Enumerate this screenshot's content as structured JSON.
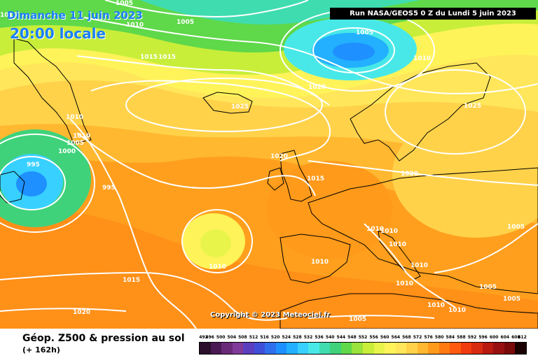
{
  "header": {
    "date": "Dimanche 11 juin 2023",
    "time": "20:00 locale",
    "run": "Run NASA/GEOS5 0 Z du Lundi 5 juin 2023"
  },
  "copyright": "Copyright © 2023 Meteociel.fr",
  "footer": {
    "title": "Géop. Z500 & pression au sol",
    "subtitle": "(+ 162h)"
  },
  "legend": {
    "ticks": [
      "492",
      "496",
      "500",
      "504",
      "508",
      "512",
      "516",
      "520",
      "524",
      "528",
      "532",
      "536",
      "540",
      "544",
      "548",
      "552",
      "556",
      "560",
      "564",
      "568",
      "572",
      "576",
      "580",
      "584",
      "588",
      "592",
      "596",
      "600",
      "604",
      "608",
      "612"
    ],
    "colors": [
      "#2b0f2b",
      "#4a1a55",
      "#6a2a7a",
      "#7f3a9a",
      "#5b3fbf",
      "#3f4fd8",
      "#2f6fee",
      "#1e90ff",
      "#22b0ff",
      "#38d0ff",
      "#48e8e8",
      "#3fdcb0",
      "#3fd27a",
      "#5fd84a",
      "#9ae23c",
      "#c8ee3a",
      "#e8f44a",
      "#fff35a",
      "#ffe65a",
      "#ffd24a",
      "#ffb830",
      "#ff9a1a",
      "#ff7a10",
      "#ff5a10",
      "#f03a10",
      "#d82a10",
      "#b81a10",
      "#981010",
      "#7a0a0a",
      "#1a0000"
    ]
  },
  "isobars": [
    {
      "label": "1005",
      "x": -30,
      "y": 5
    },
    {
      "label": "1010",
      "x": -65,
      "y": 15
    },
    {
      "label": "1005",
      "x": -35,
      "y": 15
    },
    {
      "label": "1010",
      "x": -45,
      "y": 30
    },
    {
      "label": "1015",
      "x": -25,
      "y": 40
    },
    {
      "label": "1015",
      "x": -18,
      "y": 40
    },
    {
      "label": "1005",
      "x": -10,
      "y": 8
    },
    {
      "label": "1005",
      "x": 20,
      "y": 20
    },
    {
      "label": "1010",
      "x": 30,
      "y": 25
    },
    {
      "label": "1020",
      "x": 5,
      "y": 43
    },
    {
      "label": "1025",
      "x": -18,
      "y": 45
    },
    {
      "label": "1010",
      "x": -60,
      "y": 50
    },
    {
      "label": "1010",
      "x": -62,
      "y": 52
    },
    {
      "label": "1005",
      "x": -60,
      "y": 54
    },
    {
      "label": "1000",
      "x": -63,
      "y": 55
    },
    {
      "label": "995",
      "x": -70,
      "y": 55
    },
    {
      "label": "995",
      "x": -50,
      "y": 56
    },
    {
      "label": "1020",
      "x": -5,
      "y": 52
    },
    {
      "label": "1015",
      "x": -2,
      "y": 48
    },
    {
      "label": "1025",
      "x": 25,
      "y": 55
    },
    {
      "label": "1020",
      "x": 20,
      "y": 50
    },
    {
      "label": "1010",
      "x": -30,
      "y": 38
    },
    {
      "label": "1010",
      "x": 5,
      "y": 45
    },
    {
      "label": "1010",
      "x": 12,
      "y": 44
    },
    {
      "label": "1010",
      "x": 15,
      "y": 40
    },
    {
      "label": "1010",
      "x": 3,
      "y": 40
    },
    {
      "label": "1010",
      "x": 20,
      "y": 42
    },
    {
      "label": "1010",
      "x": 10,
      "y": 38
    },
    {
      "label": "1015",
      "x": -40,
      "y": 32
    },
    {
      "label": "1005",
      "x": 30,
      "y": 45
    },
    {
      "label": "1005",
      "x": 28,
      "y": 35
    },
    {
      "label": "1005",
      "x": 20,
      "y": 30
    },
    {
      "label": "1005",
      "x": 25,
      "y": 32
    },
    {
      "label": "1010",
      "x": 22,
      "y": 32
    },
    {
      "label": "1010",
      "x": 21,
      "y": 31
    },
    {
      "label": "1020",
      "x": -45,
      "y": 28
    }
  ]
}
